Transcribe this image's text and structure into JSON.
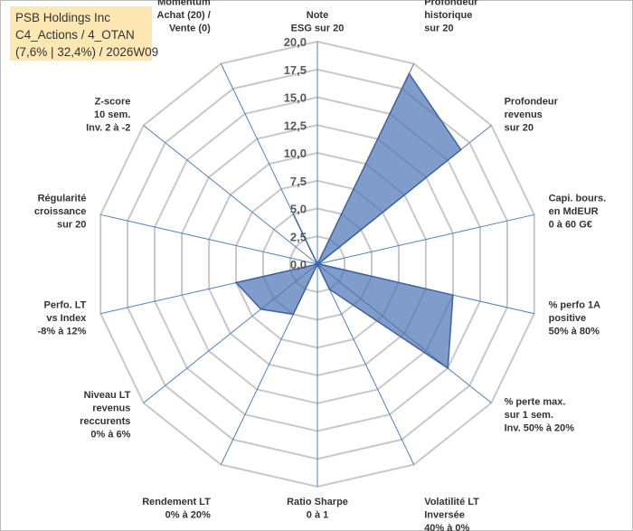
{
  "chart_data": {
    "type": "radar",
    "title_lines": [
      "PSB Holdings Inc",
      "C4_Actions / 4_OTAN",
      "(7,6% | 32,4%) / 2026W09"
    ],
    "rmax": 20,
    "ticks": [
      "0,0",
      "2,5",
      "5,0",
      "7,5",
      "10,0",
      "12,5",
      "15,0",
      "17,5",
      "20,0"
    ],
    "categories": [
      {
        "lines": [
          "Note",
          "ESG sur 20"
        ]
      },
      {
        "lines": [
          "Profondeur",
          "historique",
          "sur 20"
        ]
      },
      {
        "lines": [
          "Profondeur",
          "revenus",
          "sur 20"
        ]
      },
      {
        "lines": [
          "Capi. bours.",
          "en MdEUR",
          "0 à 60 G€"
        ]
      },
      {
        "lines": [
          "% perfo 1A",
          "positive",
          "50% à 80%"
        ]
      },
      {
        "lines": [
          "% perte max.",
          "sur 1 sem.",
          "Inv. 50% à 20%"
        ]
      },
      {
        "lines": [
          "Volatilité LT",
          "Inversée",
          "40% à 0%"
        ]
      },
      {
        "lines": [
          "Ratio Sharpe",
          "0 à 1"
        ]
      },
      {
        "lines": [
          "Rendement LT",
          "0% à 20%"
        ]
      },
      {
        "lines": [
          "Niveau LT",
          "revenus",
          "reccurents",
          "0% à 6%"
        ]
      },
      {
        "lines": [
          "Perfo. LT",
          "vs Index",
          "-8% à 12%"
        ]
      },
      {
        "lines": [
          "Régularité",
          "croissance",
          "sur 20"
        ]
      },
      {
        "lines": [
          "Z-score",
          "10 sem.",
          "Inv. 2 à -2"
        ]
      },
      {
        "lines": [
          "Momentum",
          "Achat (20) /",
          "Vente (0)"
        ]
      }
    ],
    "series": [
      {
        "name": "PSB Holdings Inc",
        "values": [
          0,
          19,
          16.5,
          0.1,
          12.5,
          15,
          2.5,
          0,
          5,
          6.5,
          7.5,
          0,
          0,
          5
        ]
      }
    ],
    "colors": {
      "fill": "#4a72b3",
      "fill_opacity": 0.7,
      "stroke": "#3f62a0",
      "grid": "#c8c8c8",
      "spoke": "#4f81bd"
    }
  }
}
